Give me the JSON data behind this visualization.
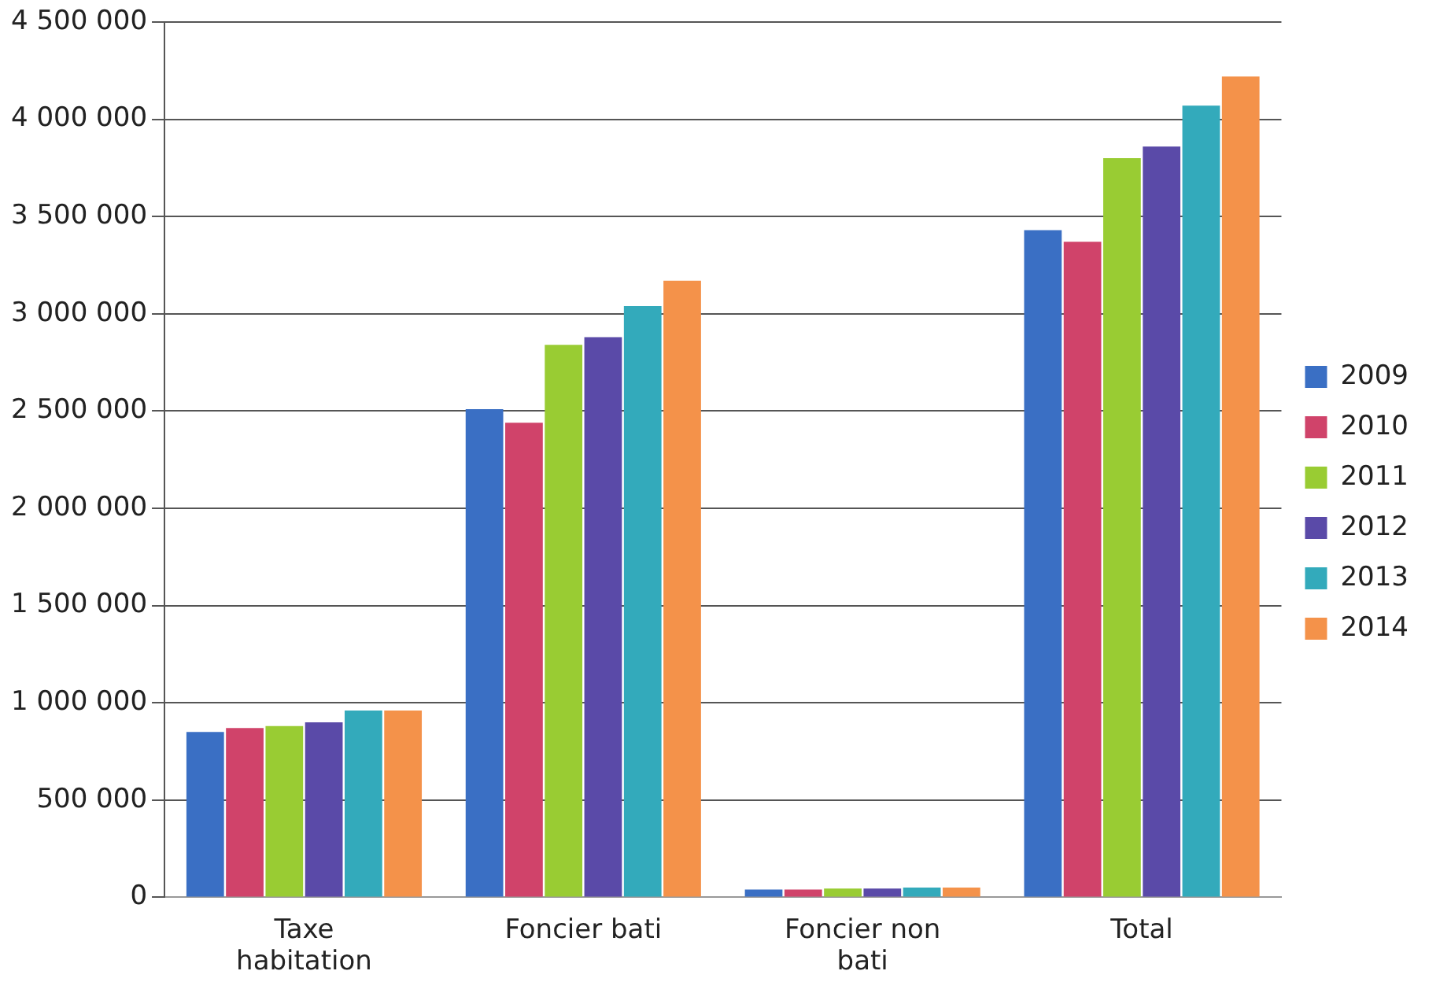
{
  "chart_data": {
    "type": "bar",
    "categories": [
      "Taxe habitation",
      "Foncier bati",
      "Foncier non bati",
      "Total"
    ],
    "series": [
      {
        "name": "2009",
        "color": "#3a6fc4",
        "values": [
          850000,
          2510000,
          40000,
          3430000
        ]
      },
      {
        "name": "2010",
        "color": "#d0436a",
        "values": [
          870000,
          2440000,
          40000,
          3370000
        ]
      },
      {
        "name": "2011",
        "color": "#99cc33",
        "values": [
          880000,
          2840000,
          45000,
          3800000
        ]
      },
      {
        "name": "2012",
        "color": "#5a4aa8",
        "values": [
          900000,
          2880000,
          45000,
          3860000
        ]
      },
      {
        "name": "2013",
        "color": "#33aabb",
        "values": [
          960000,
          3040000,
          50000,
          4070000
        ]
      },
      {
        "name": "2014",
        "color": "#f4924a",
        "values": [
          960000,
          3170000,
          50000,
          4220000
        ]
      }
    ],
    "ylim": [
      0,
      4500000
    ],
    "yticks": [
      {
        "value": 0,
        "label": "0"
      },
      {
        "value": 500000,
        "label": "500 000"
      },
      {
        "value": 1000000,
        "label": "1 000 000"
      },
      {
        "value": 1500000,
        "label": "1 500 000"
      },
      {
        "value": 2000000,
        "label": "2 000 000"
      },
      {
        "value": 2500000,
        "label": "2 500 000"
      },
      {
        "value": 3000000,
        "label": "3 000 000"
      },
      {
        "value": 3500000,
        "label": "3 500 000"
      },
      {
        "value": 4000000,
        "label": "4 000 000"
      },
      {
        "value": 4500000,
        "label": "4 500 000"
      }
    ],
    "grid": "y",
    "legend": "right"
  }
}
